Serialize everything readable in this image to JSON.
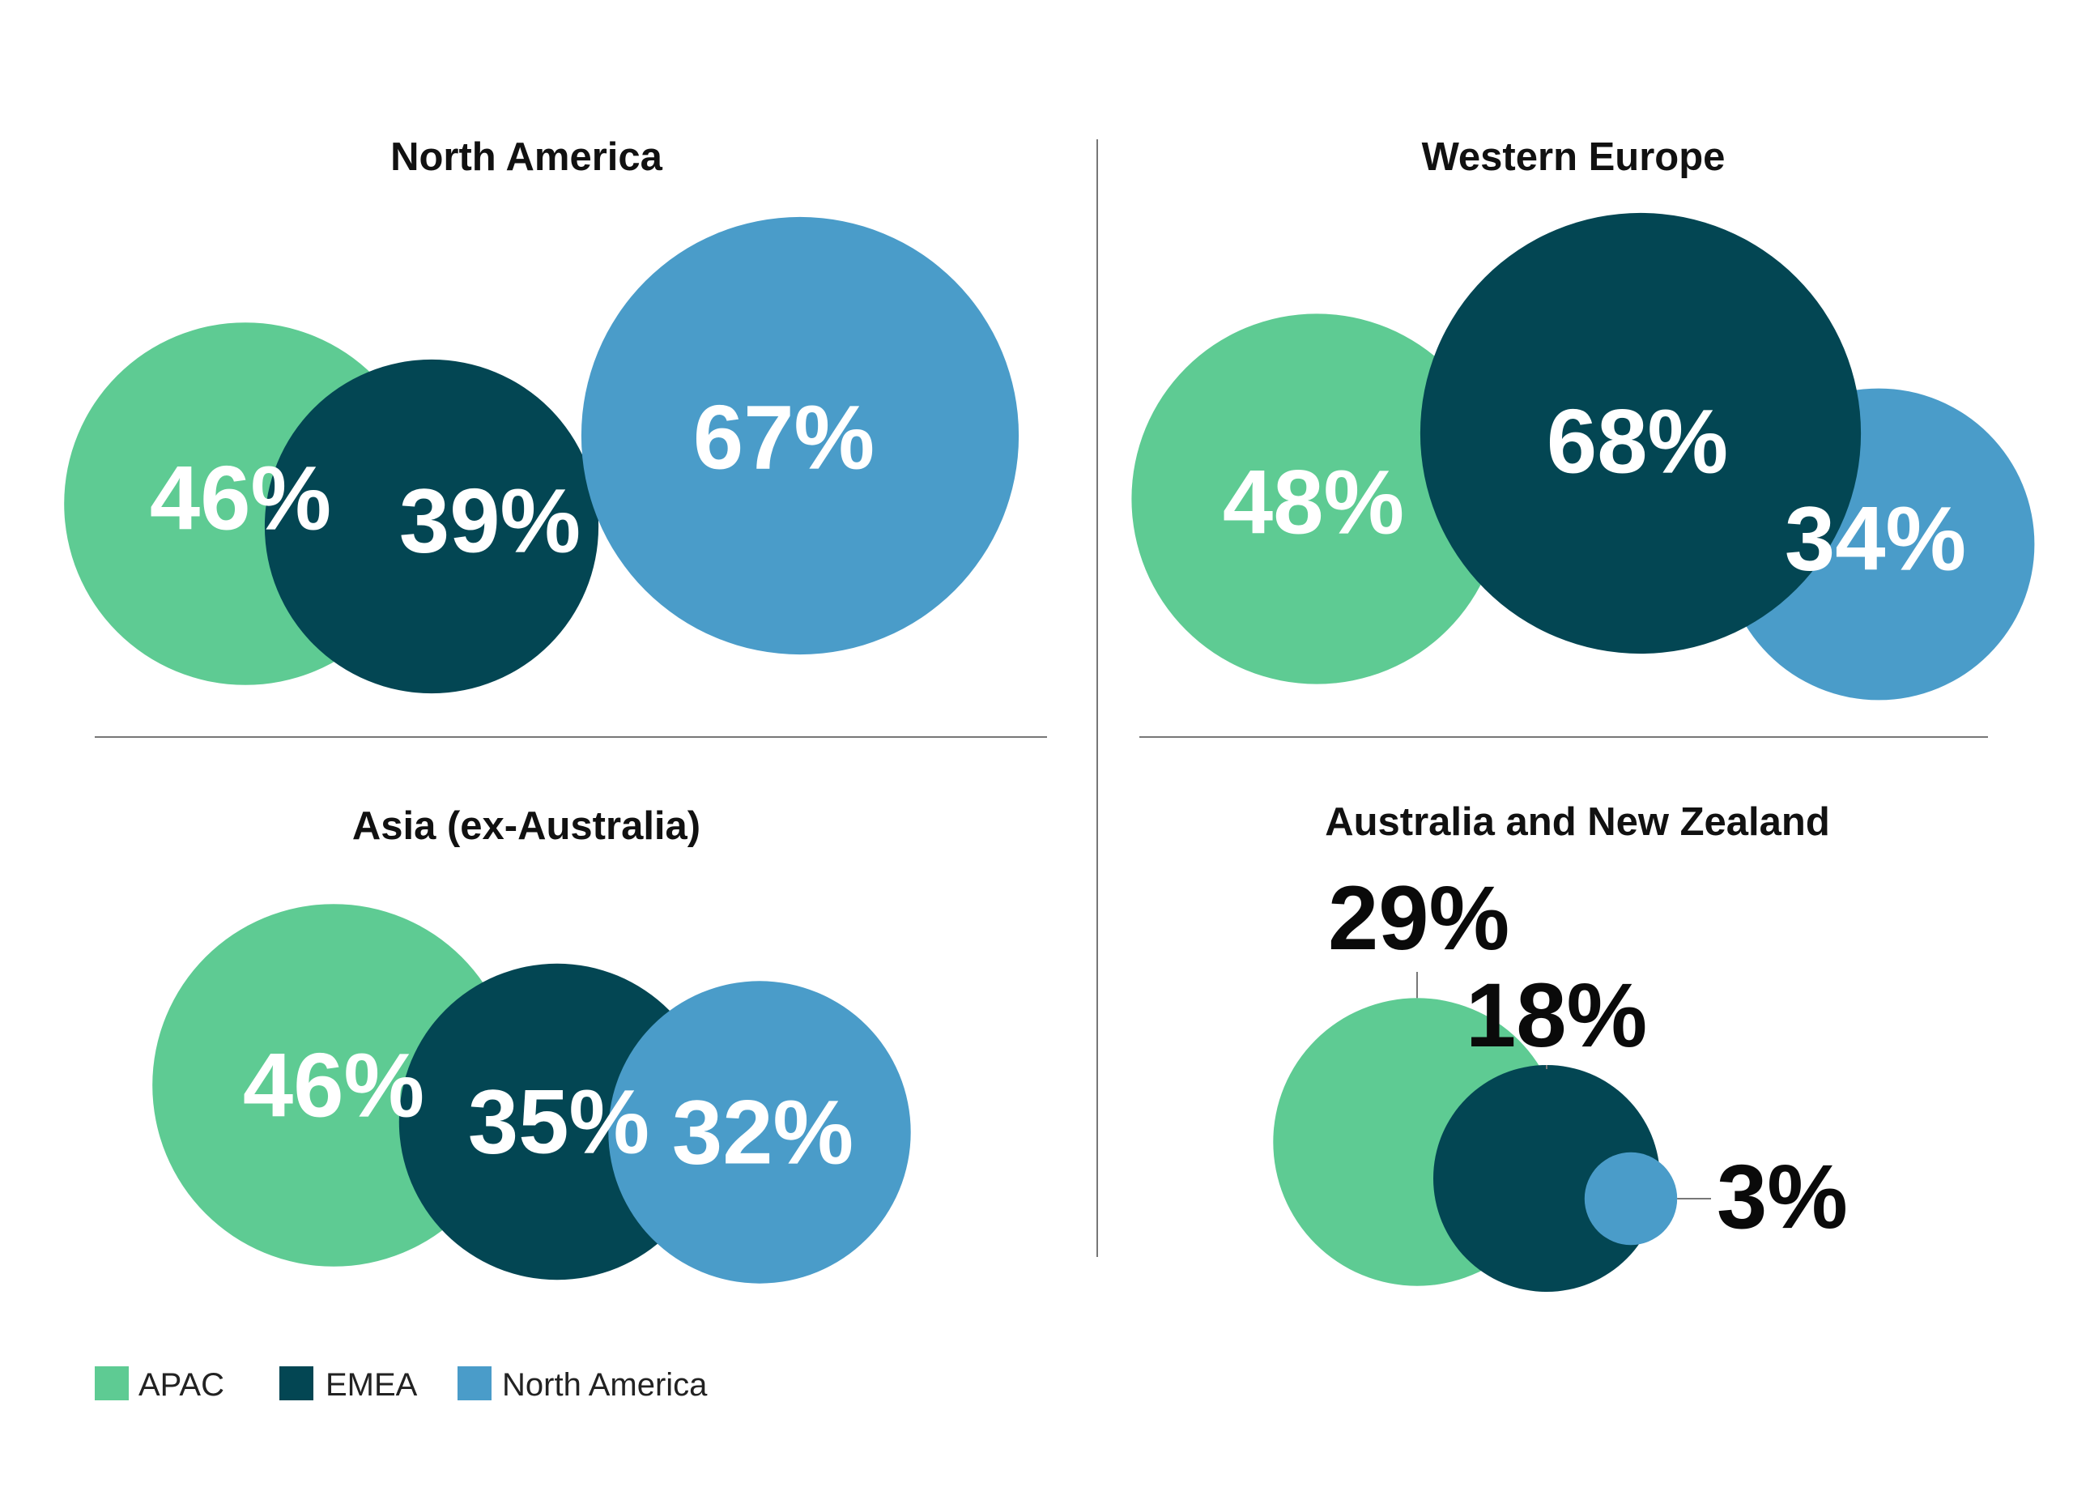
{
  "colors": {
    "APAC": "#5ecb93",
    "EMEA": "#034653",
    "North America": "#4a9cc9",
    "divider": "#777777"
  },
  "chart_data": [
    {
      "type": "bubble",
      "title": "North America",
      "series": [
        {
          "name": "APAC",
          "value": 46,
          "label": "46%"
        },
        {
          "name": "EMEA",
          "value": 39,
          "label": "39%"
        },
        {
          "name": "North America",
          "value": 67,
          "label": "67%"
        }
      ]
    },
    {
      "type": "bubble",
      "title": "Western Europe",
      "series": [
        {
          "name": "APAC",
          "value": 48,
          "label": "48%"
        },
        {
          "name": "EMEA",
          "value": 68,
          "label": "68%"
        },
        {
          "name": "North America",
          "value": 34,
          "label": "34%"
        }
      ]
    },
    {
      "type": "bubble",
      "title": "Asia (ex-Australia)",
      "series": [
        {
          "name": "APAC",
          "value": 46,
          "label": "46%"
        },
        {
          "name": "EMEA",
          "value": 35,
          "label": "35%"
        },
        {
          "name": "North America",
          "value": 32,
          "label": "32%"
        }
      ]
    },
    {
      "type": "bubble",
      "title": "Australia and New Zealand",
      "series": [
        {
          "name": "APAC",
          "value": 29,
          "label": "29%"
        },
        {
          "name": "EMEA",
          "value": 18,
          "label": "18%"
        },
        {
          "name": "North America",
          "value": 3,
          "label": "3%"
        }
      ]
    }
  ],
  "legend": {
    "items": [
      {
        "name": "APAC",
        "label": "APAC"
      },
      {
        "name": "EMEA",
        "label": "EMEA"
      },
      {
        "name": "North America",
        "label": "North America"
      }
    ]
  }
}
